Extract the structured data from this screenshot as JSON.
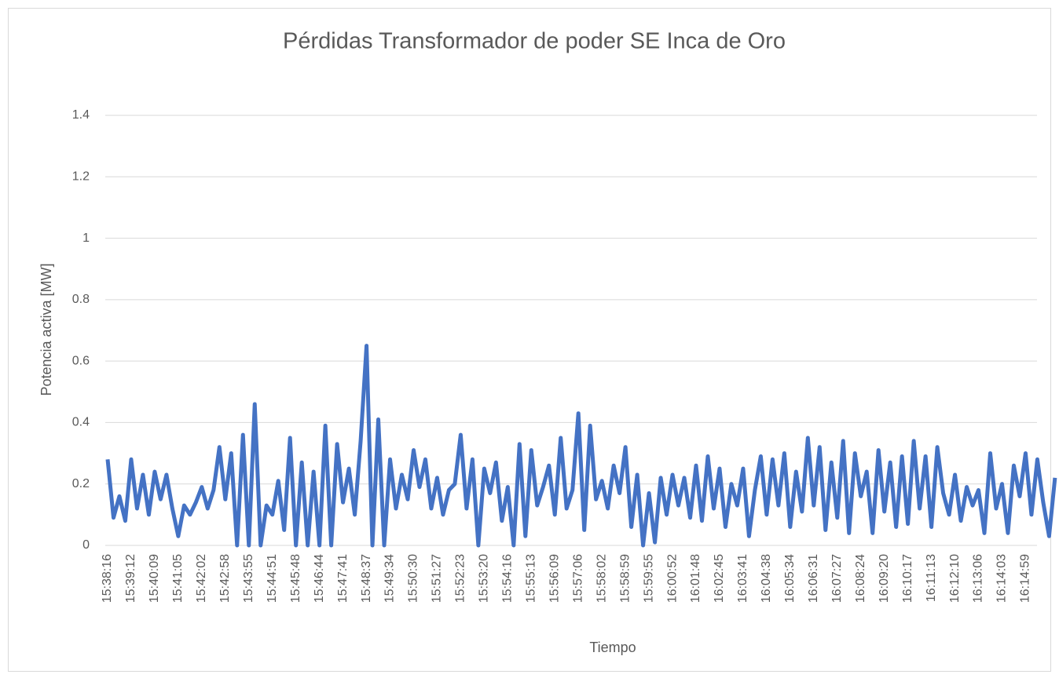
{
  "chart_data": {
    "type": "line",
    "title": "Pérdidas Transformador de poder SE Inca de Oro",
    "x_label": "Tiempo",
    "y_label": "Potencia activa [MW]",
    "categories": [
      "15:38:16",
      null,
      null,
      null,
      "15:39:12",
      null,
      null,
      null,
      "15:40:09",
      null,
      null,
      null,
      "15:41:05",
      null,
      null,
      null,
      "15:42:02",
      null,
      null,
      null,
      "15:42:58",
      null,
      null,
      null,
      "15:43:55",
      null,
      null,
      null,
      "15:44:51",
      null,
      null,
      null,
      "15:45:48",
      null,
      null,
      null,
      "15:46:44",
      null,
      null,
      null,
      "15:47:41",
      null,
      null,
      null,
      "15:48:37",
      null,
      null,
      null,
      "15:49:34",
      null,
      null,
      null,
      "15:50:30",
      null,
      null,
      null,
      "15:51:27",
      null,
      null,
      null,
      "15:52:23",
      null,
      null,
      null,
      "15:53:20",
      null,
      null,
      null,
      "15:54:16",
      null,
      null,
      null,
      "15:55:13",
      null,
      null,
      null,
      "15:56:09",
      null,
      null,
      null,
      "15:57:06",
      null,
      null,
      null,
      "15:58:02",
      null,
      null,
      null,
      "15:58:59",
      null,
      null,
      null,
      "15:59:55",
      null,
      null,
      null,
      "16:00:52",
      null,
      null,
      null,
      "16:01:48",
      null,
      null,
      null,
      "16:02:45",
      null,
      null,
      null,
      "16:03:41",
      null,
      null,
      null,
      "16:04:38",
      null,
      null,
      null,
      "16:05:34",
      null,
      null,
      null,
      "16:06:31",
      null,
      null,
      null,
      "16:07:27",
      null,
      null,
      null,
      "16:08:24",
      null,
      null,
      null,
      "16:09:20",
      null,
      null,
      null,
      "16:10:17",
      null,
      null,
      null,
      "16:11:13",
      null,
      null,
      null,
      "16:12:10",
      null,
      null,
      null,
      "16:13:06",
      null,
      null,
      null,
      "16:14:03",
      null,
      null,
      null,
      "16:14:59",
      null,
      null,
      null,
      null,
      null
    ],
    "series": [
      {
        "name": "Pérdidas",
        "color": "#4472c4",
        "values": [
          0.28,
          0.09,
          0.16,
          0.08,
          0.28,
          0.12,
          0.23,
          0.1,
          0.24,
          0.15,
          0.23,
          0.12,
          0.03,
          0.13,
          0.1,
          0.14,
          0.19,
          0.12,
          0.18,
          0.32,
          0.15,
          0.3,
          0.0,
          0.36,
          0.0,
          0.46,
          0.0,
          0.13,
          0.1,
          0.21,
          0.05,
          0.35,
          0.0,
          0.27,
          0.0,
          0.24,
          0.0,
          0.39,
          0.0,
          0.33,
          0.14,
          0.25,
          0.1,
          0.34,
          0.65,
          0.0,
          0.41,
          0.0,
          0.28,
          0.12,
          0.23,
          0.15,
          0.31,
          0.19,
          0.28,
          0.12,
          0.22,
          0.1,
          0.18,
          0.2,
          0.36,
          0.12,
          0.28,
          0.0,
          0.25,
          0.17,
          0.27,
          0.08,
          0.19,
          0.0,
          0.33,
          0.03,
          0.31,
          0.13,
          0.19,
          0.26,
          0.1,
          0.35,
          0.12,
          0.18,
          0.43,
          0.05,
          0.39,
          0.15,
          0.21,
          0.12,
          0.26,
          0.17,
          0.32,
          0.06,
          0.23,
          0.0,
          0.17,
          0.01,
          0.22,
          0.1,
          0.23,
          0.13,
          0.22,
          0.09,
          0.26,
          0.08,
          0.29,
          0.12,
          0.25,
          0.06,
          0.2,
          0.13,
          0.25,
          0.03,
          0.18,
          0.29,
          0.1,
          0.28,
          0.13,
          0.3,
          0.06,
          0.24,
          0.11,
          0.35,
          0.13,
          0.32,
          0.05,
          0.27,
          0.09,
          0.34,
          0.04,
          0.3,
          0.16,
          0.24,
          0.04,
          0.31,
          0.11,
          0.27,
          0.06,
          0.29,
          0.07,
          0.34,
          0.12,
          0.29,
          0.06,
          0.32,
          0.17,
          0.1,
          0.23,
          0.08,
          0.19,
          0.13,
          0.18,
          0.04,
          0.3,
          0.12,
          0.2,
          0.04,
          0.26,
          0.16,
          0.3,
          0.1,
          0.28,
          0.14,
          0.03,
          0.22
        ]
      }
    ],
    "ylim": [
      0,
      1.4
    ],
    "yticks": [
      0,
      0.2,
      0.4,
      0.6,
      0.8,
      1,
      1.2,
      1.4
    ],
    "grid": true
  }
}
